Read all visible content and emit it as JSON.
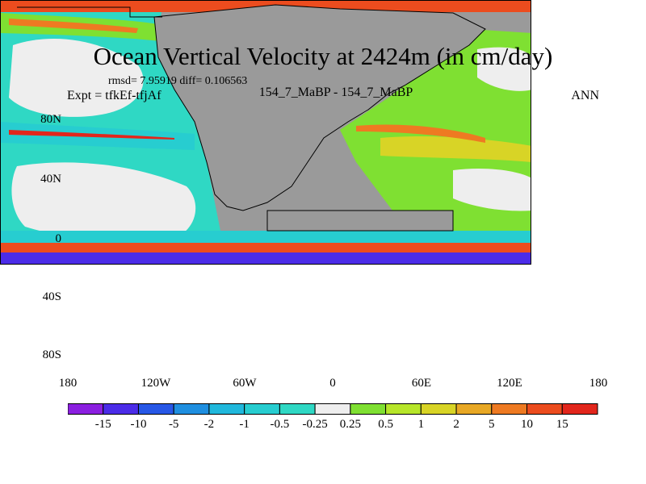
{
  "title": "Ocean Vertical Velocity at 2424m (in cm/day)",
  "stats": "rmsd= 7.95919 diff= 0.106563",
  "experiment": "Expt = tfkEf-tfjAf",
  "cases": "154_7_MaBP - 154_7_MaBP",
  "season": "ANN",
  "lat_labels": [
    "80N",
    "40N",
    "0",
    "40S",
    "80S"
  ],
  "lon_labels": [
    "180",
    "120W",
    "60W",
    "0",
    "60E",
    "120E",
    "180"
  ],
  "colorbar": {
    "labels": [
      "-15",
      "-10",
      "-5",
      "-2",
      "-1",
      "-0.5",
      "-0.25",
      "0.25",
      "0.5",
      "1",
      "2",
      "5",
      "10",
      "15"
    ],
    "colors": [
      "#8b1fe0",
      "#4b2ce8",
      "#2757e6",
      "#1f8fe0",
      "#20b8dc",
      "#27cdd0",
      "#2fd8c4",
      "#eeeeee",
      "#7fe032",
      "#b7e62a",
      "#d8d426",
      "#e8a825",
      "#ee7a22",
      "#ec4c1e",
      "#e2261c"
    ]
  },
  "land_color": "#9a9a9a"
}
